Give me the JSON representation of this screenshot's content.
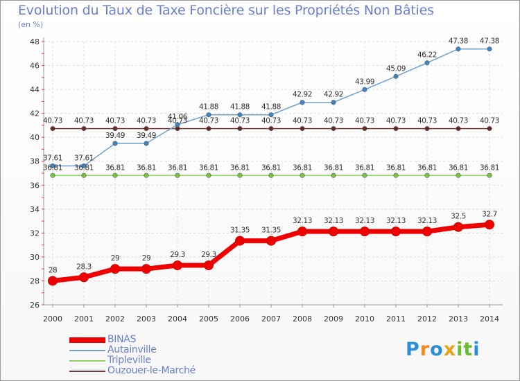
{
  "title": "Evolution du Taux de Taxe Foncière sur les Propriétés Non Bâties",
  "subtitle": "(en %)",
  "logo": {
    "text": "Proxiti",
    "letters": [
      "P",
      "r",
      "o",
      "x",
      "i",
      "t",
      "i"
    ],
    "colors": [
      "#2b8fd8",
      "#f08a1c",
      "#2b8fd8",
      "#e8a21a",
      "#6abf2e",
      "#6abf2e",
      "#2b8fd8"
    ]
  },
  "chart_data": {
    "type": "line",
    "title": "Evolution du Taux de Taxe Foncière sur les Propriétés Non Bâties",
    "ylabel": "(en %)",
    "xlabel": "",
    "x": [
      "2000",
      "2001",
      "2002",
      "2003",
      "2004",
      "2005",
      "2006",
      "2007",
      "2008",
      "2009",
      "2010",
      "2011",
      "2012",
      "2013",
      "2014"
    ],
    "ylim": [
      26,
      48
    ],
    "yticks": [
      26,
      28,
      30,
      32,
      34,
      36,
      38,
      40,
      42,
      44,
      46,
      48
    ],
    "grid": true,
    "legend_position": "bottom-left",
    "series": [
      {
        "name": "BINAS",
        "color": "#ee0000",
        "style": "thick",
        "values": [
          28,
          28.3,
          29,
          29,
          29.3,
          29.3,
          31.35,
          31.35,
          32.13,
          32.13,
          32.13,
          32.13,
          32.13,
          32.5,
          32.7
        ],
        "labels": [
          "28",
          "28.3",
          "29",
          "29",
          "29.3",
          "29.3",
          "31.35",
          "31.35",
          "32.13",
          "32.13",
          "32.13",
          "32.13",
          "32.13",
          "32.5",
          "32.7"
        ]
      },
      {
        "name": "Autainville",
        "color": "#6fa0d0",
        "marker": "#3f86c8",
        "style": "thin",
        "values": [
          37.61,
          37.61,
          39.49,
          39.49,
          41.06,
          41.88,
          41.88,
          41.88,
          42.92,
          42.92,
          43.99,
          45.09,
          46.22,
          47.38,
          47.38
        ],
        "labels": [
          "37.61",
          "37.61",
          "39.49",
          "39.49",
          "41.06",
          "41.88",
          "41.88",
          "41.88",
          "42.92",
          "42.92",
          "43.99",
          "45.09",
          "46.22",
          "47.38",
          "47.38"
        ]
      },
      {
        "name": "Tripleville",
        "color": "#8fd060",
        "marker": "#7cc840",
        "style": "thin",
        "values": [
          36.81,
          36.81,
          36.81,
          36.81,
          36.81,
          36.81,
          36.81,
          36.81,
          36.81,
          36.81,
          36.81,
          36.81,
          36.81,
          36.81,
          36.81
        ],
        "labels": [
          "36.81",
          "36.81",
          "36.81",
          "36.81",
          "36.81",
          "36.81",
          "36.81",
          "36.81",
          "36.81",
          "36.81",
          "36.81",
          "36.81",
          "36.81",
          "36.81",
          "36.81"
        ]
      },
      {
        "name": "Ouzouer-le-Marché",
        "color": "#7a3a3a",
        "marker": "#6a2a2a",
        "style": "thin",
        "values": [
          40.73,
          40.73,
          40.73,
          40.73,
          40.73,
          40.73,
          40.73,
          40.73,
          40.73,
          40.73,
          40.73,
          40.73,
          40.73,
          40.73,
          40.73
        ],
        "labels": [
          "40.73",
          "40.73",
          "40.73",
          "40.73",
          "40.73",
          "40.73",
          "40.73",
          "40.73",
          "40.73",
          "40.73",
          "40.73",
          "40.73",
          "40.73",
          "40.73",
          "40.73"
        ]
      }
    ]
  }
}
